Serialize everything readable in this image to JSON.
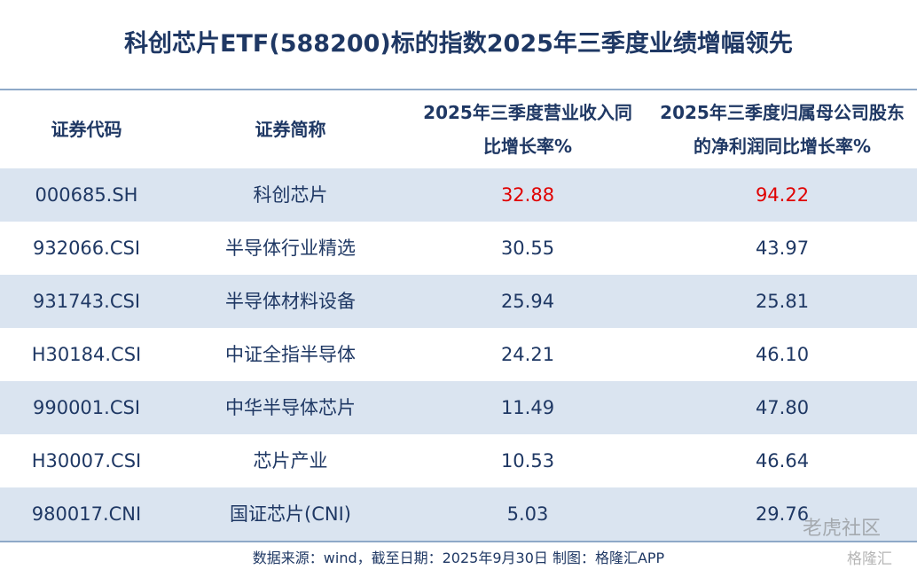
{
  "header": {
    "title": "科创芯片ETF(588200)标的指数2025年三季度业绩增幅领先"
  },
  "table": {
    "columns": [
      "证券代码",
      "证券简称",
      "2025年三季度营业收入同比增长率%",
      "2025年三季度归属母公司股东的净利润同比增长率%"
    ],
    "rows": [
      [
        "000685.SH",
        "科创芯片",
        "32.88",
        "94.22"
      ],
      [
        "932066.CSI",
        "半导体行业精选",
        "30.55",
        "43.97"
      ],
      [
        "931743.CSI",
        "半导体材料设备",
        "25.94",
        "25.81"
      ],
      [
        "H30184.CSI",
        "中证全指半导体",
        "24.21",
        "46.10"
      ],
      [
        "990001.CSI",
        "中华半导体芯片",
        "11.49",
        "47.80"
      ],
      [
        "H30007.CSI",
        "芯片产业",
        "10.53",
        "46.64"
      ],
      [
        "980017.CNI",
        "国证芯片(CNI)",
        "5.03",
        "29.76"
      ]
    ]
  },
  "footer": {
    "source": "数据来源：wind，截至日期：2025年9月30日 制图：格隆汇APP"
  },
  "watermarks": [
    "老虎社区",
    "格隆汇"
  ]
}
